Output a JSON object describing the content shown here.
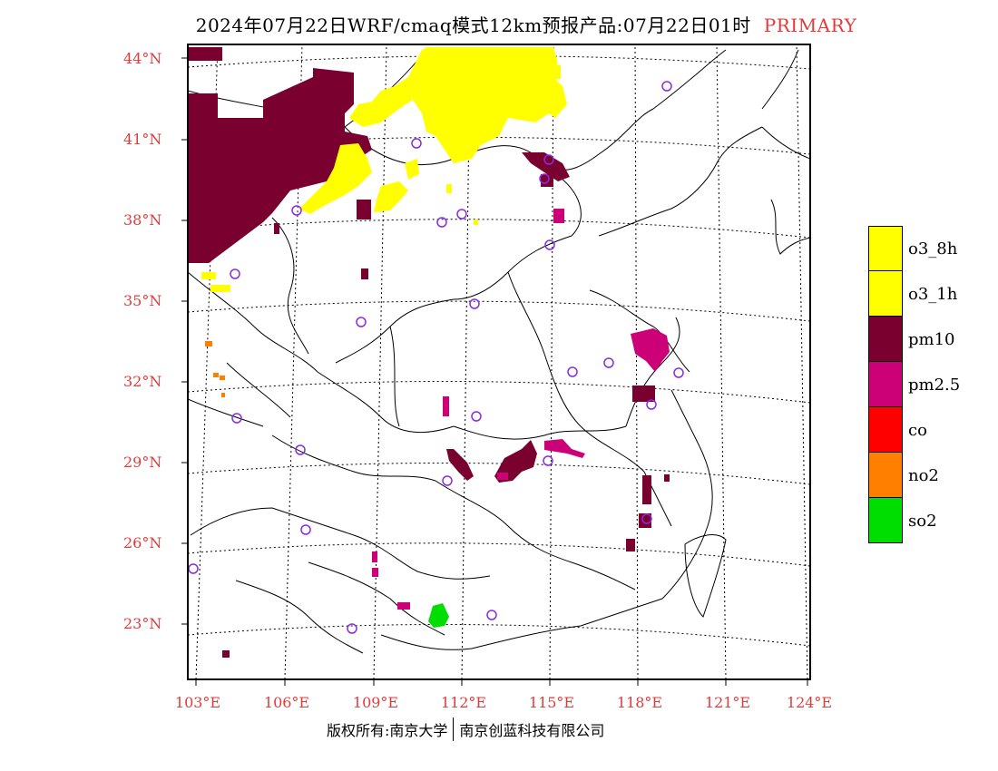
{
  "title": {
    "main": "2024年07月22日WRF/cmaq模式12km预报产品:07月22日01时",
    "tag": "PRIMARY"
  },
  "axes": {
    "lat_labels": [
      "44°N",
      "41°N",
      "38°N",
      "35°N",
      "32°N",
      "29°N",
      "26°N",
      "23°N"
    ],
    "lon_labels": [
      "103°E",
      "106°E",
      "109°E",
      "112°E",
      "115°E",
      "118°E",
      "121°E",
      "124°E"
    ]
  },
  "legend": {
    "items": [
      {
        "label": "o3_8h",
        "color": "#ffff00"
      },
      {
        "label": "o3_1h",
        "color": "#ffff00"
      },
      {
        "label": "pm10",
        "color": "#7a0030"
      },
      {
        "label": "pm2.5",
        "color": "#cc0077"
      },
      {
        "label": "co",
        "color": "#ff0000"
      },
      {
        "label": "no2",
        "color": "#ff7f00"
      },
      {
        "label": "so2",
        "color": "#00dd00"
      }
    ]
  },
  "footer": {
    "left": "版权所有:南京大学",
    "right": "南京创蓝科技有限公司"
  },
  "colors": {
    "accent": "#e23b3b",
    "pm10": "#7a0030",
    "pm25": "#cc0077",
    "o3": "#ffff00",
    "no2": "#ff7f00",
    "so2": "#00dd00",
    "station": "#8a2be2"
  }
}
